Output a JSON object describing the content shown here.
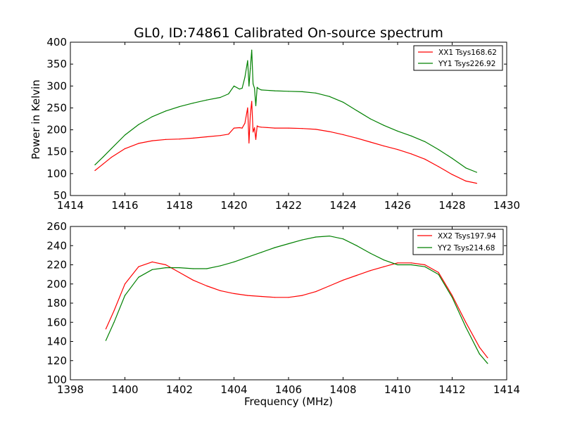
{
  "chart_data": [
    {
      "type": "line",
      "title": "GL0, ID:74861 Calibrated On-source spectrum",
      "xlabel": "",
      "ylabel": "Power in Kelvin",
      "xlim": [
        1414,
        1430
      ],
      "ylim": [
        50,
        400
      ],
      "xticks": [
        1414,
        1416,
        1418,
        1420,
        1422,
        1424,
        1426,
        1428,
        1430
      ],
      "yticks": [
        50,
        100,
        150,
        200,
        250,
        300,
        350,
        400
      ],
      "grid": false,
      "legend_position": "top-right",
      "series": [
        {
          "name": "XX1 Tsys168.62",
          "color": "#ff0000",
          "x": [
            1414.9,
            1415.2,
            1415.5,
            1416.0,
            1416.5,
            1417.0,
            1417.5,
            1418.0,
            1418.5,
            1419.0,
            1419.5,
            1419.8,
            1420.0,
            1420.2,
            1420.3,
            1420.4,
            1420.5,
            1420.55,
            1420.6,
            1420.65,
            1420.7,
            1420.75,
            1420.8,
            1420.85,
            1420.9,
            1421.0,
            1421.5,
            1422.0,
            1422.5,
            1423.0,
            1423.5,
            1424.0,
            1424.5,
            1425.0,
            1425.5,
            1426.0,
            1426.5,
            1427.0,
            1427.5,
            1428.0,
            1428.5,
            1428.9
          ],
          "values": [
            107,
            122,
            137,
            157,
            169,
            175,
            178,
            179,
            181,
            184,
            187,
            190,
            204,
            205,
            204,
            215,
            250,
            170,
            235,
            265,
            195,
            205,
            178,
            209,
            207,
            206,
            204,
            204,
            203,
            201,
            196,
            189,
            181,
            172,
            163,
            155,
            145,
            133,
            116,
            98,
            83,
            78
          ]
        },
        {
          "name": "YY1 Tsys226.92",
          "color": "#008000",
          "x": [
            1414.9,
            1415.2,
            1415.5,
            1416.0,
            1416.5,
            1417.0,
            1417.5,
            1418.0,
            1418.5,
            1419.0,
            1419.5,
            1419.8,
            1420.0,
            1420.2,
            1420.3,
            1420.4,
            1420.5,
            1420.55,
            1420.6,
            1420.65,
            1420.7,
            1420.75,
            1420.8,
            1420.85,
            1420.9,
            1421.0,
            1421.5,
            1422.0,
            1422.5,
            1423.0,
            1423.5,
            1424.0,
            1424.5,
            1425.0,
            1425.5,
            1426.0,
            1426.5,
            1427.0,
            1427.5,
            1428.0,
            1428.5,
            1428.9
          ],
          "values": [
            120,
            138,
            157,
            188,
            212,
            230,
            243,
            253,
            261,
            268,
            274,
            282,
            300,
            293,
            295,
            320,
            358,
            300,
            340,
            382,
            305,
            295,
            255,
            297,
            294,
            291,
            289,
            288,
            287,
            284,
            276,
            263,
            244,
            225,
            210,
            197,
            186,
            173,
            155,
            135,
            113,
            103
          ]
        }
      ]
    },
    {
      "type": "line",
      "title": "",
      "xlabel": "Frequency (MHz)",
      "ylabel": "",
      "xlim": [
        1398,
        1414
      ],
      "ylim": [
        100,
        260
      ],
      "xticks": [
        1398,
        1400,
        1402,
        1404,
        1406,
        1408,
        1410,
        1412,
        1414
      ],
      "yticks": [
        100,
        120,
        140,
        160,
        180,
        200,
        220,
        240,
        260
      ],
      "grid": false,
      "legend_position": "top-right",
      "series": [
        {
          "name": "XX2 Tsys197.94",
          "color": "#ff0000",
          "x": [
            1399.3,
            1399.6,
            1400.0,
            1400.5,
            1401.0,
            1401.5,
            1402.0,
            1402.5,
            1403.0,
            1403.5,
            1404.0,
            1404.5,
            1405.0,
            1405.5,
            1406.0,
            1406.5,
            1407.0,
            1407.5,
            1408.0,
            1408.5,
            1409.0,
            1409.5,
            1410.0,
            1410.5,
            1411.0,
            1411.5,
            1412.0,
            1412.5,
            1413.0,
            1413.3
          ],
          "values": [
            153,
            172,
            200,
            218,
            223,
            220,
            212,
            204,
            198,
            193,
            190,
            188,
            187,
            186,
            186,
            188,
            192,
            198,
            204,
            209,
            214,
            218,
            222,
            222,
            220,
            212,
            188,
            160,
            134,
            123
          ]
        },
        {
          "name": "YY2 Tsys214.68",
          "color": "#008000",
          "x": [
            1399.3,
            1399.6,
            1400.0,
            1400.5,
            1401.0,
            1401.5,
            1402.0,
            1402.5,
            1403.0,
            1403.5,
            1404.0,
            1404.5,
            1405.0,
            1405.5,
            1406.0,
            1406.5,
            1407.0,
            1407.5,
            1408.0,
            1408.5,
            1409.0,
            1409.5,
            1410.0,
            1410.5,
            1411.0,
            1411.5,
            1412.0,
            1412.5,
            1413.0,
            1413.3
          ],
          "values": [
            141,
            160,
            188,
            207,
            215,
            217,
            217,
            216,
            216,
            219,
            223,
            228,
            233,
            238,
            242,
            246,
            249,
            250,
            247,
            240,
            232,
            225,
            220,
            220,
            218,
            210,
            186,
            155,
            127,
            117
          ]
        }
      ]
    }
  ]
}
